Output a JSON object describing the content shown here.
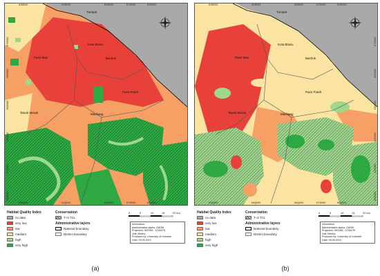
{
  "panels": [
    {
      "id": "a",
      "caption": "(a)",
      "grid_x": [
        "630000",
        "645000",
        "660000",
        "675000",
        "690000"
      ],
      "grid_y": [
        "675000",
        "660000",
        "645000",
        "630000",
        "615000",
        "600000"
      ],
      "places": {
        "tumpat": "Tumpat",
        "kota_bharu": "Kota Bharu",
        "bachok": "Bachok",
        "pasir_mas": "Pasir Mas",
        "pasir_puteh": "Pasir Puteh",
        "tanah_merah": "Tanah Merah",
        "machang": "Machang"
      }
    },
    {
      "id": "b",
      "caption": "(b)",
      "grid_x": [
        "630000",
        "645000",
        "660000",
        "675000",
        "690000"
      ],
      "grid_y": [
        "675000",
        "660000",
        "645000",
        "630000",
        "615000",
        "600000"
      ],
      "places": {
        "tumpat": "Tumpat",
        "kota_bharu": "Kota Bharu",
        "bachok": "Bachok",
        "pasir_mas": "Pasir Mas",
        "pasir_puteh": "Pasir Puteh",
        "tanah_merah": "Tanah Merah",
        "machang": "Machang"
      }
    }
  ],
  "legend": {
    "hqi_title": "Habitat Quality Index",
    "hqi_classes": [
      {
        "label": "no data",
        "color": "#a9a9a9"
      },
      {
        "label": "very low",
        "color": "#e8413a"
      },
      {
        "label": "low",
        "color": "#f6a065"
      },
      {
        "label": "medium",
        "color": "#fbe3a1"
      },
      {
        "label": "high",
        "color": "#9ed88c"
      },
      {
        "label": "very high",
        "color": "#2ea843"
      }
    ],
    "conservation_title": "Conservation",
    "conservation_items": [
      "T+2 TCL"
    ],
    "admin_title": "Administrative layers",
    "admin_items": [
      "National boundary",
      "District boundary"
    ]
  },
  "scale": {
    "ticks": [
      "0",
      "5",
      "10",
      "15",
      "20 km"
    ]
  },
  "info_box": {
    "lines": [
      "Information:",
      "Administrative layers: GADM",
      "Projection: WGS84 - UTM47N",
      "Unit: Meters",
      "Produced by: University of Leicester",
      "Date: 09.05.2019"
    ]
  },
  "compass": {
    "icon": "north-arrow-icon",
    "label": "N"
  }
}
